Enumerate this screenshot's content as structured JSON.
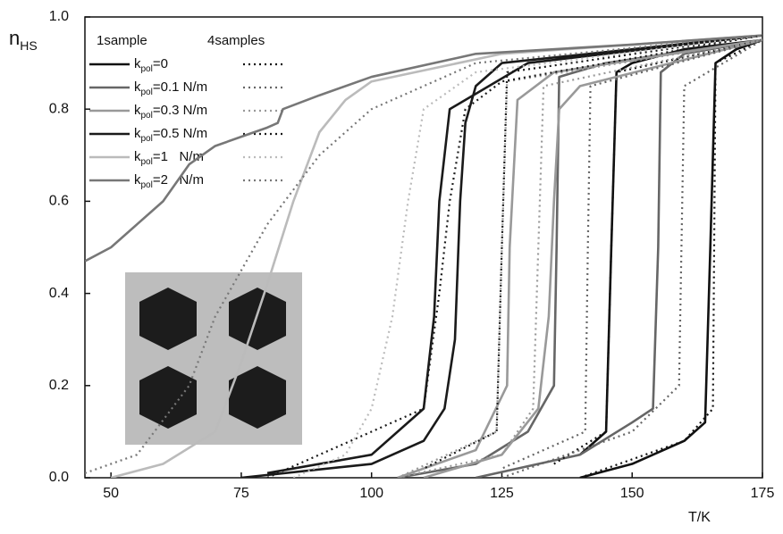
{
  "chart_data": {
    "type": "line",
    "y_label": "n",
    "y_label_sub": "HS",
    "x_label": "T/K",
    "legend_headers": [
      "1sample",
      "4samples"
    ],
    "xlim": [
      45,
      175
    ],
    "xticks": [
      50,
      75,
      100,
      125,
      150,
      175
    ],
    "ylim": [
      0,
      1
    ],
    "yticks": [
      {
        "value": 0,
        "label": "0.0"
      },
      0.2,
      0.4,
      0.6,
      0.8,
      {
        "value": 1,
        "label": "1.0"
      }
    ],
    "series": [
      {
        "name": "k",
        "name_sub": "pol",
        "name_rest": "=0",
        "group": 0,
        "style": "solid",
        "color": "#111111",
        "x": [
          140,
          150,
          160,
          164,
          165,
          166,
          170,
          175,
          160,
          150,
          147,
          146,
          145,
          140
        ],
        "values": [
          0,
          0.03,
          0.08,
          0.12,
          0.5,
          0.9,
          0.93,
          0.95,
          0.93,
          0.9,
          0.88,
          0.5,
          0.1,
          0.05
        ]
      },
      {
        "name": "k",
        "name_sub": "pol",
        "name_rest": "=0.1 N/m",
        "group": 0,
        "style": "solid",
        "color": "#666666",
        "x": [
          120,
          140,
          150,
          154,
          155,
          155.5,
          160,
          175,
          145,
          136,
          135.5,
          135,
          130,
          120,
          105
        ],
        "values": [
          0,
          0.05,
          0.12,
          0.15,
          0.5,
          0.88,
          0.92,
          0.95,
          0.9,
          0.87,
          0.5,
          0.2,
          0.1,
          0.03,
          0
        ]
      },
      {
        "name": "k",
        "name_sub": "pol",
        "name_rest": "=0.3 N/m",
        "group": 0,
        "style": "solid",
        "color": "#999999",
        "x": [
          110,
          125,
          132,
          134,
          135,
          136,
          140,
          175,
          135,
          128,
          126.5,
          126,
          120,
          105
        ],
        "values": [
          0,
          0.05,
          0.15,
          0.35,
          0.6,
          0.8,
          0.85,
          0.95,
          0.88,
          0.82,
          0.5,
          0.2,
          0.06,
          0
        ]
      },
      {
        "name": "k",
        "name_sub": "pol",
        "name_rest": "=0.5 N/m",
        "group": 0,
        "style": "solid",
        "color": "#1a1a1a",
        "x": [
          75,
          100,
          110,
          114,
          116,
          117,
          118,
          120,
          125,
          150,
          175,
          130,
          115,
          113,
          112,
          110,
          100,
          80
        ],
        "values": [
          0,
          0.03,
          0.08,
          0.15,
          0.3,
          0.6,
          0.77,
          0.85,
          0.9,
          0.93,
          0.96,
          0.9,
          0.8,
          0.6,
          0.35,
          0.15,
          0.05,
          0.01
        ]
      },
      {
        "name": "k",
        "name_sub": "pol",
        "name_rest": "=1   N/m",
        "group": 0,
        "style": "solid",
        "color": "#bbbbbb",
        "x": [
          50,
          60,
          70,
          75,
          80,
          85,
          90,
          95,
          100,
          125,
          175
        ],
        "values": [
          0,
          0.03,
          0.1,
          0.25,
          0.42,
          0.6,
          0.75,
          0.82,
          0.86,
          0.92,
          0.96
        ]
      },
      {
        "name": "k",
        "name_sub": "pol",
        "name_rest": "=2   N/m",
        "group": 0,
        "style": "solid",
        "color": "#777777",
        "x": [
          45,
          50,
          55,
          60,
          65,
          70,
          75,
          80,
          82,
          83,
          90,
          100,
          120,
          150,
          175
        ],
        "values": [
          0.47,
          0.5,
          0.55,
          0.6,
          0.68,
          0.72,
          0.74,
          0.76,
          0.77,
          0.8,
          0.83,
          0.87,
          0.92,
          0.94,
          0.96
        ]
      },
      {
        "group": 1,
        "style": "dotted",
        "color": "#111111",
        "x": [
          140,
          160,
          165.5,
          166,
          175,
          147,
          146,
          145,
          135
        ],
        "values": [
          0,
          0.08,
          0.15,
          0.9,
          0.95,
          0.88,
          0.5,
          0.1,
          0.03
        ]
      },
      {
        "group": 1,
        "style": "dotted",
        "color": "#666666",
        "x": [
          125,
          150,
          159,
          160,
          175,
          142,
          141.5,
          141,
          125
        ],
        "values": [
          0,
          0.1,
          0.2,
          0.85,
          0.95,
          0.85,
          0.5,
          0.1,
          0.02
        ]
      },
      {
        "group": 1,
        "style": "dotted",
        "color": "#999999",
        "x": [
          105,
          125,
          131,
          132,
          133,
          175,
          126,
          125,
          124,
          105
        ],
        "values": [
          0,
          0.05,
          0.15,
          0.5,
          0.85,
          0.95,
          0.86,
          0.5,
          0.1,
          0
        ]
      },
      {
        "group": 1,
        "style": "dotted",
        "color": "#1a1a1a",
        "x": [
          80,
          110,
          113,
          115,
          118,
          125,
          175,
          126,
          125,
          124,
          110
        ],
        "values": [
          0,
          0.15,
          0.4,
          0.6,
          0.8,
          0.86,
          0.96,
          0.88,
          0.5,
          0.1,
          0.02
        ]
      },
      {
        "group": 1,
        "style": "dotted",
        "color": "#bbbbbb",
        "x": [
          85,
          95,
          100,
          104,
          107,
          110,
          120,
          175
        ],
        "values": [
          0,
          0.05,
          0.15,
          0.35,
          0.6,
          0.8,
          0.88,
          0.96
        ]
      },
      {
        "group": 1,
        "style": "dotted",
        "color": "#777777",
        "x": [
          45,
          55,
          65,
          70,
          75,
          80,
          90,
          100,
          120,
          175
        ],
        "values": [
          0.01,
          0.05,
          0.2,
          0.35,
          0.45,
          0.55,
          0.7,
          0.8,
          0.9,
          0.96
        ]
      }
    ]
  }
}
